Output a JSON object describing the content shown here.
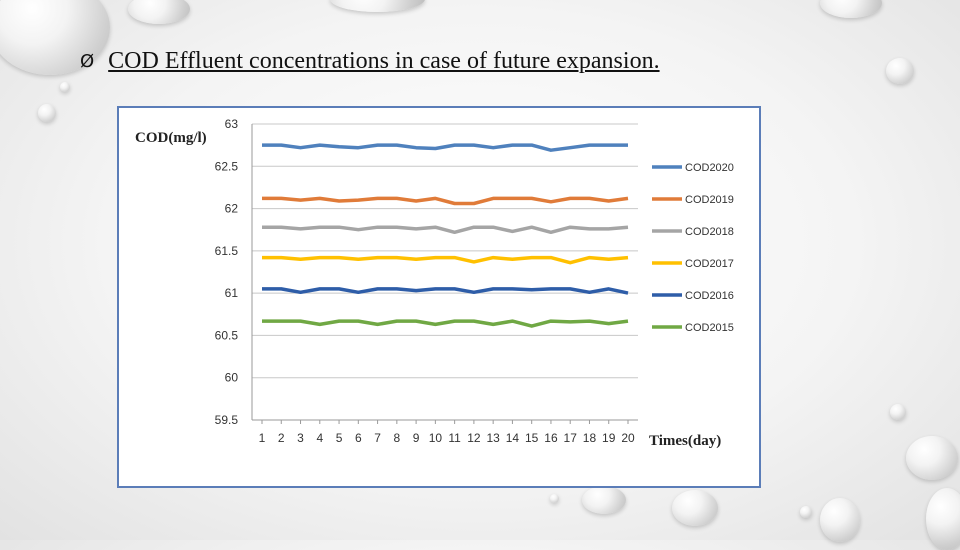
{
  "slide": {
    "bullet": "Ø",
    "title": "COD Effluent concentrations in case of future expansion."
  },
  "chart_data": {
    "type": "line",
    "ylabel": "COD(mg/l)",
    "xlabel": "Times(day)",
    "ylim": [
      59.5,
      63
    ],
    "yticks": [
      "63",
      "62.5",
      "62",
      "61.5",
      "61",
      "60.5",
      "60",
      "59.5"
    ],
    "x": [
      1,
      2,
      3,
      4,
      5,
      6,
      7,
      8,
      9,
      10,
      11,
      12,
      13,
      14,
      15,
      16,
      17,
      18,
      19,
      20
    ],
    "grid": true,
    "legend_position": "right",
    "series": [
      {
        "name": "COD2020",
        "color": "#4f81bd",
        "values": [
          62.75,
          62.75,
          62.72,
          62.75,
          62.73,
          62.72,
          62.75,
          62.75,
          62.72,
          62.71,
          62.75,
          62.75,
          62.72,
          62.75,
          62.75,
          62.69,
          62.72,
          62.75,
          62.75,
          62.75
        ]
      },
      {
        "name": "COD2019",
        "color": "#e07b39",
        "values": [
          62.12,
          62.12,
          62.1,
          62.12,
          62.09,
          62.1,
          62.12,
          62.12,
          62.09,
          62.12,
          62.06,
          62.06,
          62.12,
          62.12,
          62.12,
          62.08,
          62.12,
          62.12,
          62.09,
          62.12
        ]
      },
      {
        "name": "COD2018",
        "color": "#a5a5a5",
        "values": [
          61.78,
          61.78,
          61.76,
          61.78,
          61.78,
          61.75,
          61.78,
          61.78,
          61.76,
          61.78,
          61.72,
          61.78,
          61.78,
          61.73,
          61.78,
          61.72,
          61.78,
          61.76,
          61.76,
          61.78
        ]
      },
      {
        "name": "COD2017",
        "color": "#ffc000",
        "values": [
          61.42,
          61.42,
          61.4,
          61.42,
          61.42,
          61.4,
          61.42,
          61.42,
          61.4,
          61.42,
          61.42,
          61.37,
          61.42,
          61.4,
          61.42,
          61.42,
          61.36,
          61.42,
          61.4,
          61.42
        ]
      },
      {
        "name": "COD2016",
        "color": "#2e5da8",
        "values": [
          61.05,
          61.05,
          61.01,
          61.05,
          61.05,
          61.01,
          61.05,
          61.05,
          61.03,
          61.05,
          61.05,
          61.01,
          61.05,
          61.05,
          61.04,
          61.05,
          61.05,
          61.01,
          61.05,
          61.0
        ]
      },
      {
        "name": "COD2015",
        "color": "#70a844",
        "values": [
          60.67,
          60.67,
          60.67,
          60.63,
          60.67,
          60.67,
          60.63,
          60.67,
          60.67,
          60.63,
          60.67,
          60.67,
          60.63,
          60.67,
          60.61,
          60.67,
          60.66,
          60.67,
          60.64,
          60.67
        ]
      }
    ]
  }
}
